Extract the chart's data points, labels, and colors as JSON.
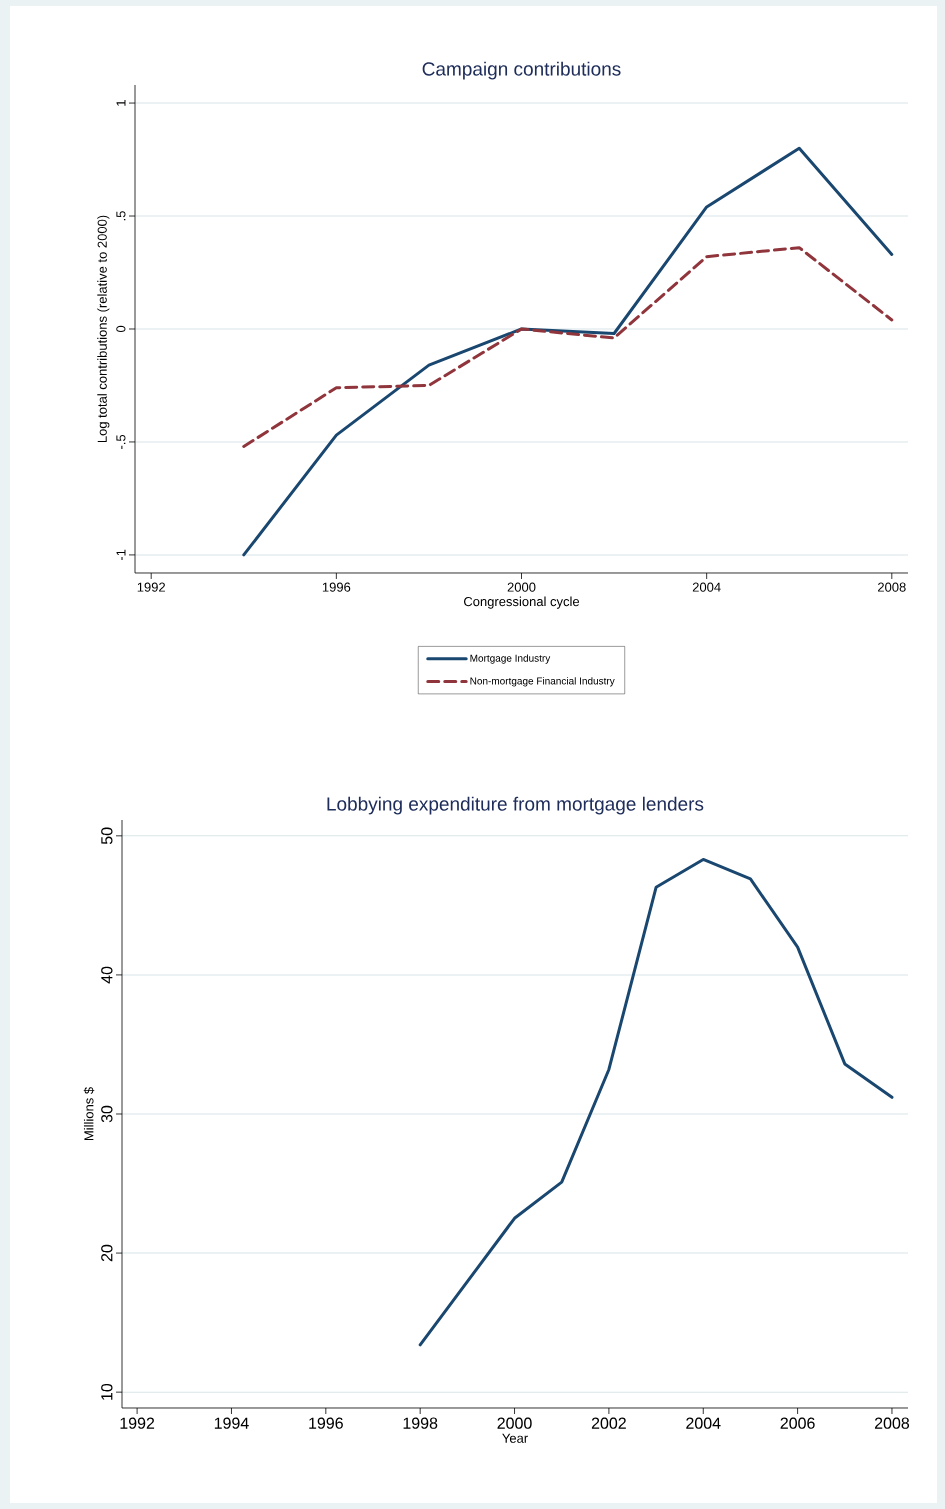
{
  "chart_data": [
    {
      "type": "line",
      "title": "Campaign contributions",
      "xlabel": "Congressional cycle",
      "ylabel": "Log total contributions (relative to 2000)",
      "x": [
        1994,
        1996,
        1998,
        2000,
        2002,
        2004,
        2006,
        2008
      ],
      "series": [
        {
          "name": "Mortgage Industry",
          "color": "#1a476f",
          "line_style": "solid",
          "values": [
            -1.0,
            -0.47,
            -0.16,
            0.0,
            -0.02,
            0.54,
            0.8,
            0.33
          ]
        },
        {
          "name": "Non-mortgage Financial Industry",
          "color": "#90353b",
          "line_style": "dashed",
          "values": [
            -0.52,
            -0.26,
            -0.25,
            0.0,
            -0.04,
            0.32,
            0.36,
            0.04
          ]
        }
      ],
      "xlim": [
        1991.65,
        2008.35
      ],
      "ylim": [
        -1.08,
        1.08
      ],
      "xticks": [
        1992,
        1996,
        2000,
        2004,
        2008
      ],
      "yticks": [
        {
          "value": -1,
          "label": "-1"
        },
        {
          "value": -0.5,
          "label": "-.5"
        },
        {
          "value": 0,
          "label": "0"
        },
        {
          "value": 0.5,
          "label": ".5"
        },
        {
          "value": 1,
          "label": "1"
        }
      ],
      "grid": "y",
      "legend": "bottom",
      "marker": "none"
    },
    {
      "type": "line",
      "title": "Lobbying expenditure from mortgage lenders",
      "xlabel": "Year",
      "ylabel": "Millions $",
      "x": [
        1998,
        2000,
        2001,
        2002,
        2003,
        2004,
        2005,
        2006,
        2007,
        2008
      ],
      "values": [
        13.4,
        22.5,
        25.1,
        33.2,
        46.3,
        48.3,
        46.9,
        42.0,
        33.6,
        31.2
      ],
      "color": "#1a476f",
      "line_style": "solid",
      "xlim": [
        1991.68,
        2008.34
      ],
      "ylim": [
        8.86,
        51.14
      ],
      "xticks": [
        1992,
        1994,
        1996,
        1998,
        2000,
        2002,
        2004,
        2006,
        2008
      ],
      "yticks": [
        10,
        20,
        30,
        40,
        50
      ],
      "grid": "y",
      "legend": false,
      "marker": "none"
    }
  ]
}
